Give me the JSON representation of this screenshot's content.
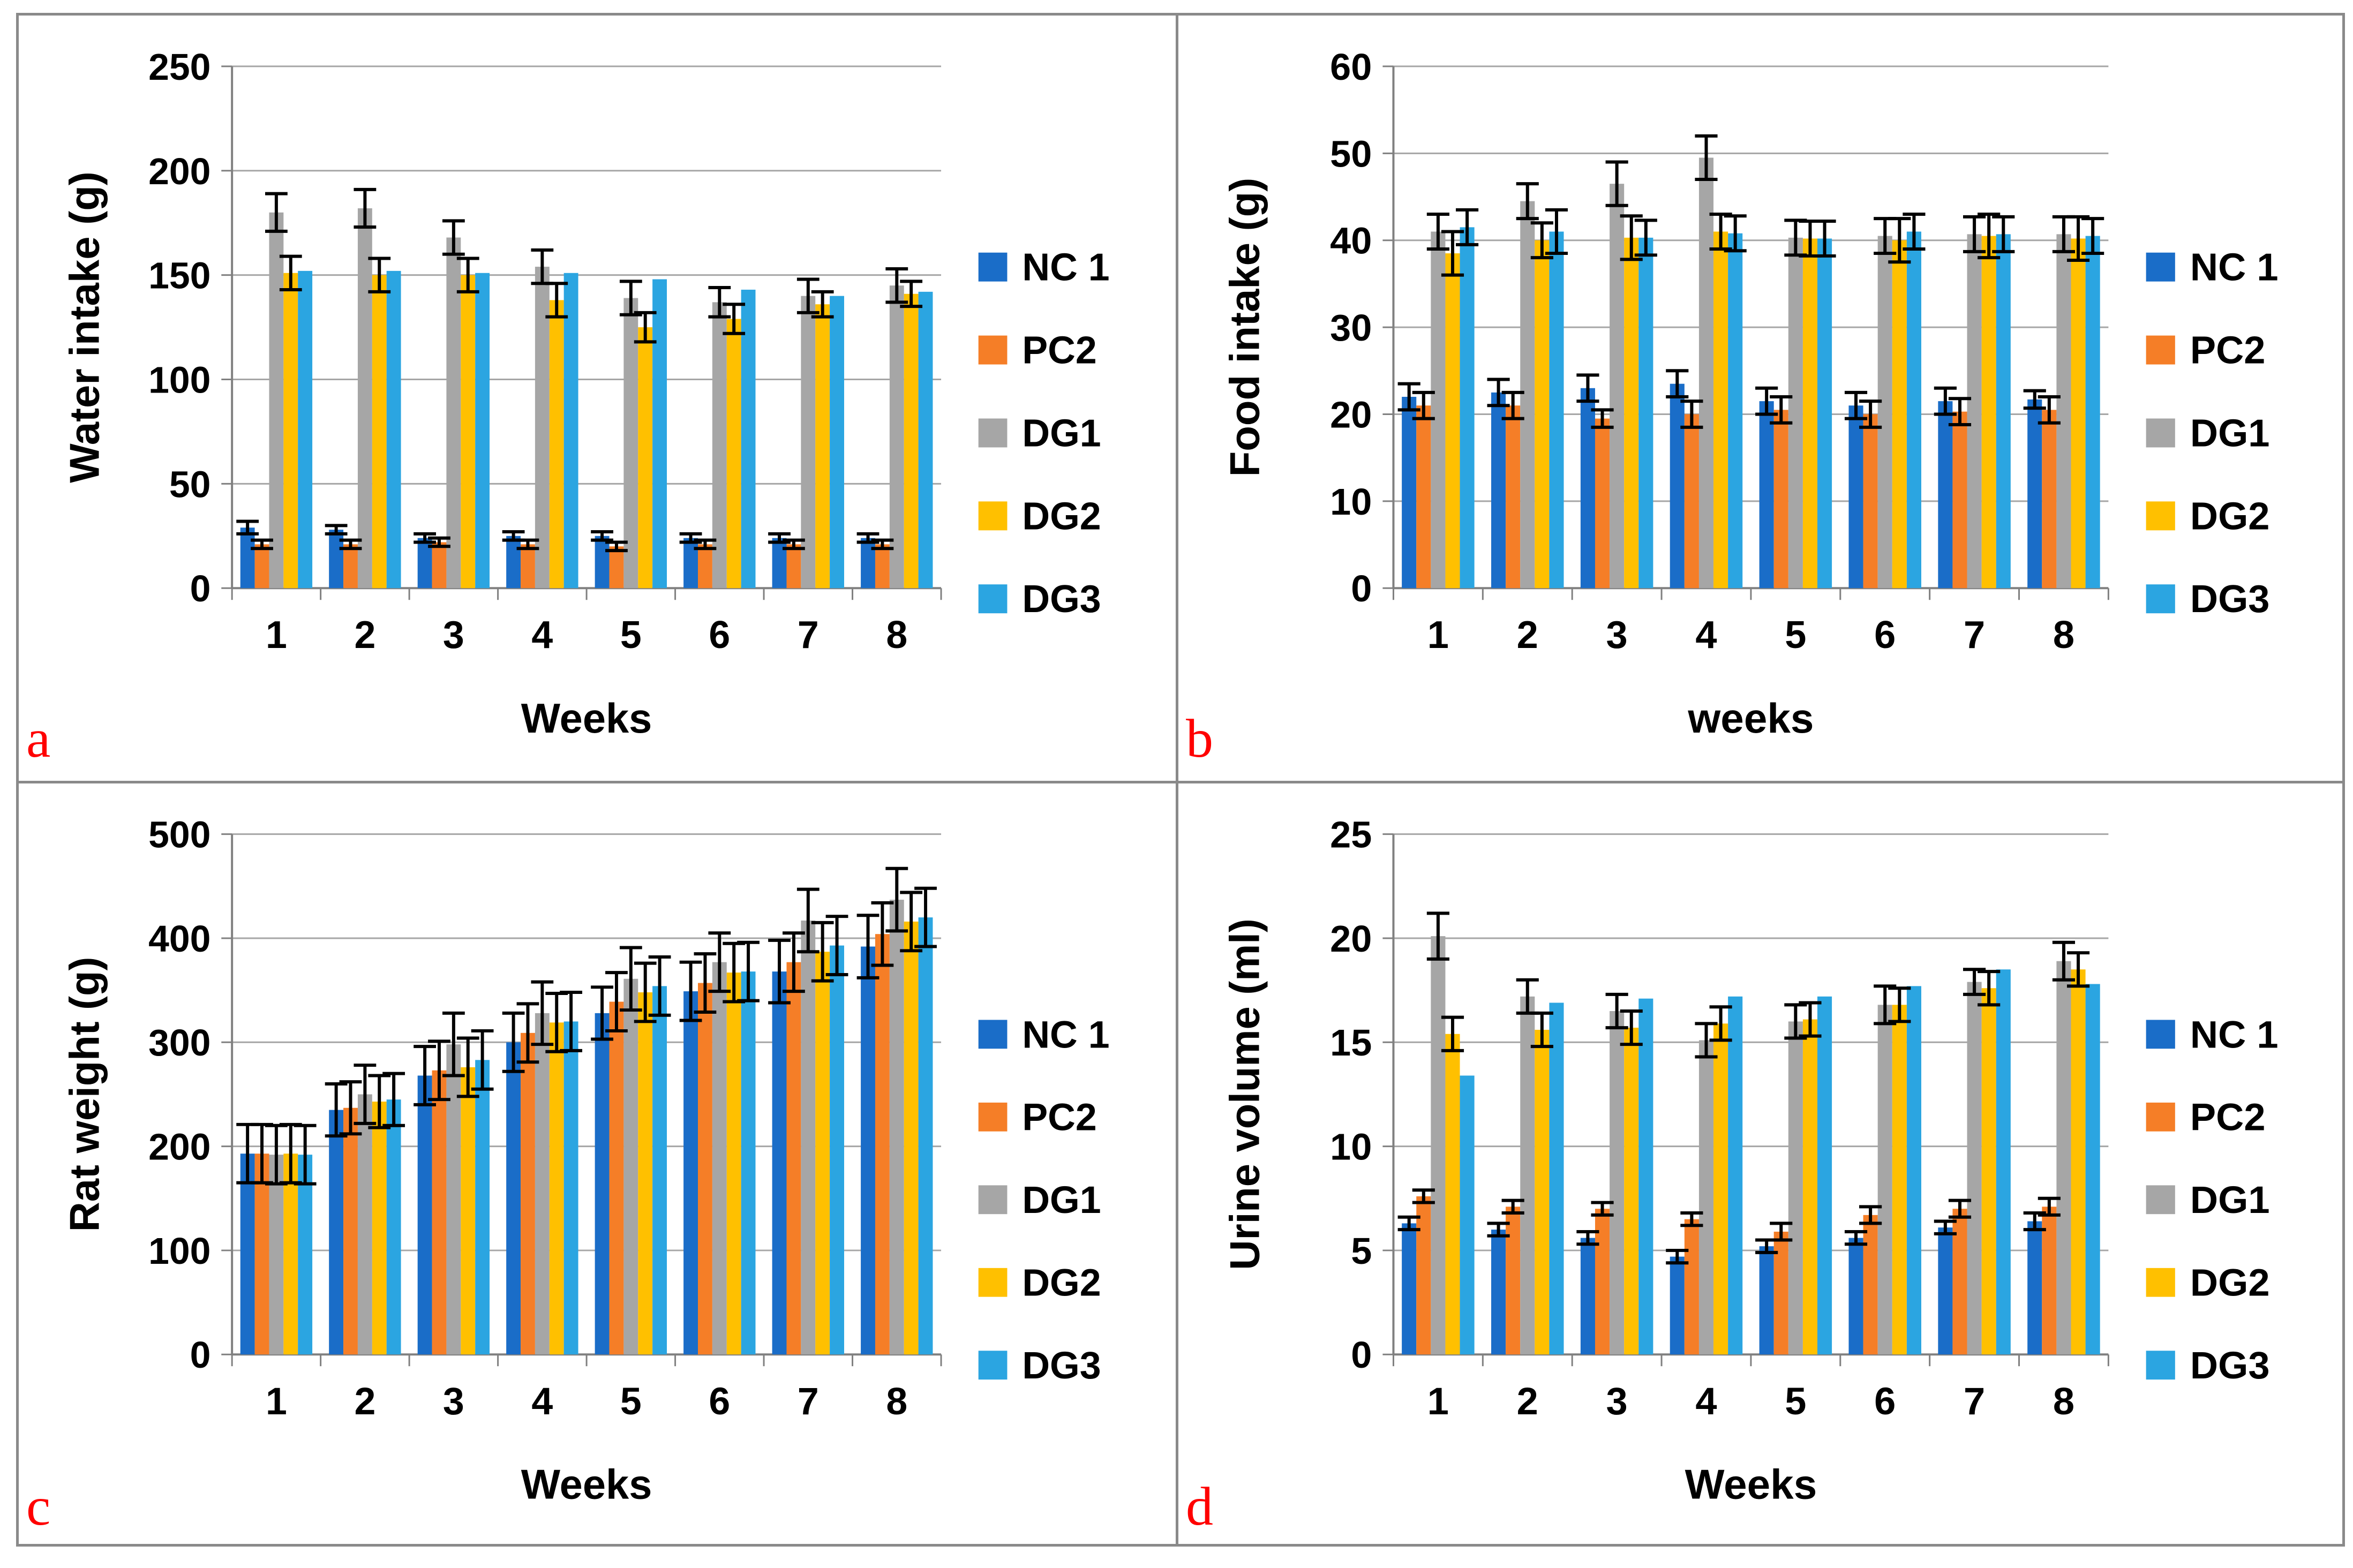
{
  "figure": {
    "background": "#FFFFFF",
    "border_color": "#8A8A8A",
    "gridline_color": "#A6A6A6",
    "axis_color": "#808080",
    "error_bar_color": "#000000",
    "letter_color": "#FF0000",
    "legend_labels": [
      "NC 1",
      "PC2",
      "DG1",
      "DG2",
      "DG3"
    ],
    "series_colors": [
      "#1A6DC8",
      "#F57E27",
      "#A6A6A6",
      "#FFC000",
      "#2BA5E1"
    ]
  },
  "chart_data": [
    {
      "id": "a",
      "panel_letter": "a",
      "type": "bar",
      "title": "",
      "xlabel": "Weeks",
      "ylabel": "Water intake  (g)",
      "categories": [
        "1",
        "2",
        "3",
        "4",
        "5",
        "6",
        "7",
        "8"
      ],
      "ylim": [
        0,
        250
      ],
      "ytick_step": 50,
      "yticks": [
        0,
        50,
        100,
        150,
        200,
        250
      ],
      "grid": true,
      "legend_position": "right",
      "series": [
        {
          "name": "NC 1",
          "color": "#1A6DC8",
          "values": [
            29,
            28,
            24,
            25,
            25,
            24,
            24,
            24
          ],
          "errors": [
            3,
            2,
            2,
            2,
            2,
            2,
            2,
            2
          ]
        },
        {
          "name": "PC2",
          "color": "#F57E27",
          "values": [
            21,
            21,
            22,
            21,
            20,
            21,
            21,
            21
          ],
          "errors": [
            2,
            2,
            2,
            2,
            2,
            2,
            2,
            2
          ]
        },
        {
          "name": "DG1",
          "color": "#A6A6A6",
          "values": [
            180,
            182,
            168,
            154,
            139,
            137,
            140,
            145
          ],
          "errors": [
            9,
            9,
            8,
            8,
            8,
            7,
            8,
            8
          ]
        },
        {
          "name": "DG2",
          "color": "#FFC000",
          "values": [
            151,
            150,
            150,
            138,
            125,
            129,
            136,
            141
          ],
          "errors": [
            8,
            8,
            8,
            8,
            7,
            7,
            6,
            6
          ]
        },
        {
          "name": "DG3",
          "color": "#2BA5E1",
          "values": [
            152,
            152,
            151,
            151,
            148,
            143,
            140,
            142
          ],
          "errors": [
            0,
            0,
            0,
            0,
            0,
            0,
            0,
            0
          ]
        }
      ]
    },
    {
      "id": "b",
      "panel_letter": "b",
      "type": "bar",
      "title": "",
      "xlabel": "weeks",
      "ylabel": "Food intake (g)",
      "categories": [
        "1",
        "2",
        "3",
        "4",
        "5",
        "6",
        "7",
        "8"
      ],
      "ylim": [
        0,
        60
      ],
      "ytick_step": 10,
      "yticks": [
        0,
        10,
        20,
        30,
        40,
        50,
        60
      ],
      "grid": true,
      "legend_position": "right",
      "series": [
        {
          "name": "NC 1",
          "color": "#1A6DC8",
          "values": [
            22,
            22.5,
            23,
            23.5,
            21.5,
            21,
            21.5,
            21.7
          ],
          "errors": [
            1.5,
            1.5,
            1.5,
            1.5,
            1.5,
            1.5,
            1.5,
            1
          ]
        },
        {
          "name": "PC2",
          "color": "#F57E27",
          "values": [
            21,
            21,
            19.5,
            20,
            20.5,
            20,
            20.3,
            20.5
          ],
          "errors": [
            1.5,
            1.5,
            1,
            1.5,
            1.5,
            1.5,
            1.5,
            1.5
          ]
        },
        {
          "name": "DG1",
          "color": "#A6A6A6",
          "values": [
            41,
            44.5,
            46.5,
            49.5,
            40.3,
            40.5,
            40.7,
            40.7
          ],
          "errors": [
            2,
            2,
            2.5,
            2.5,
            2,
            2,
            2,
            2
          ]
        },
        {
          "name": "DG2",
          "color": "#FFC000",
          "values": [
            38.5,
            40,
            40.3,
            41,
            40.2,
            40,
            40.5,
            40.2
          ],
          "errors": [
            2.5,
            2,
            2.5,
            2,
            2,
            2.5,
            2.5,
            2.5
          ]
        },
        {
          "name": "DG3",
          "color": "#2BA5E1",
          "values": [
            41.5,
            41,
            40.3,
            40.8,
            40.2,
            41,
            40.7,
            40.5
          ],
          "errors": [
            2,
            2.5,
            2,
            2,
            2,
            2,
            2,
            2
          ]
        }
      ]
    },
    {
      "id": "c",
      "panel_letter": "c",
      "type": "bar",
      "title": "",
      "xlabel": "Weeks",
      "ylabel": "Rat weight (g)",
      "categories": [
        "1",
        "2",
        "3",
        "4",
        "5",
        "6",
        "7",
        "8"
      ],
      "ylim": [
        0,
        500
      ],
      "ytick_step": 100,
      "yticks": [
        0,
        100,
        200,
        300,
        400,
        500
      ],
      "grid": true,
      "legend_position": "right",
      "series": [
        {
          "name": "NC 1",
          "color": "#1A6DC8",
          "values": [
            193,
            235,
            268,
            300,
            328,
            349,
            368,
            392
          ],
          "errors": [
            28,
            25,
            28,
            28,
            25,
            28,
            30,
            30
          ]
        },
        {
          "name": "PC2",
          "color": "#F57E27",
          "values": [
            193,
            237,
            273,
            309,
            339,
            357,
            377,
            404
          ],
          "errors": [
            28,
            25,
            28,
            28,
            28,
            28,
            28,
            30
          ]
        },
        {
          "name": "DG1",
          "color": "#A6A6A6",
          "values": [
            192,
            250,
            298,
            328,
            361,
            377,
            417,
            437
          ],
          "errors": [
            28,
            28,
            30,
            30,
            30,
            28,
            30,
            30
          ]
        },
        {
          "name": "DG2",
          "color": "#FFC000",
          "values": [
            193,
            243,
            276,
            319,
            348,
            367,
            387,
            416
          ],
          "errors": [
            28,
            25,
            28,
            28,
            28,
            28,
            28,
            28
          ]
        },
        {
          "name": "DG3",
          "color": "#2BA5E1",
          "values": [
            192,
            245,
            283,
            320,
            354,
            368,
            393,
            420
          ],
          "errors": [
            28,
            25,
            28,
            28,
            28,
            28,
            28,
            28
          ]
        }
      ]
    },
    {
      "id": "d",
      "panel_letter": "d",
      "type": "bar",
      "title": "",
      "xlabel": "Weeks",
      "ylabel": "Urine volume  (ml)",
      "categories": [
        "1",
        "2",
        "3",
        "4",
        "5",
        "6",
        "7",
        "8"
      ],
      "ylim": [
        0,
        25
      ],
      "ytick_step": 5,
      "yticks": [
        0,
        5,
        10,
        15,
        20,
        25
      ],
      "grid": true,
      "legend_position": "right",
      "series": [
        {
          "name": "NC 1",
          "color": "#1A6DC8",
          "values": [
            6.3,
            6.0,
            5.6,
            4.7,
            5.2,
            5.6,
            6.1,
            6.4
          ],
          "errors": [
            0.3,
            0.3,
            0.3,
            0.3,
            0.3,
            0.3,
            0.3,
            0.4
          ]
        },
        {
          "name": "PC2",
          "color": "#F57E27",
          "values": [
            7.6,
            7.1,
            7.0,
            6.5,
            5.9,
            6.7,
            7.0,
            7.1
          ],
          "errors": [
            0.3,
            0.3,
            0.3,
            0.3,
            0.4,
            0.4,
            0.4,
            0.4
          ]
        },
        {
          "name": "DG1",
          "color": "#A6A6A6",
          "values": [
            20.1,
            17.2,
            16.5,
            15.1,
            16.0,
            16.8,
            17.9,
            18.9
          ],
          "errors": [
            1.1,
            0.8,
            0.8,
            0.8,
            0.8,
            0.9,
            0.6,
            0.9
          ]
        },
        {
          "name": "DG2",
          "color": "#FFC000",
          "values": [
            15.4,
            15.6,
            15.7,
            15.9,
            16.1,
            16.8,
            17.6,
            18.5
          ],
          "errors": [
            0.8,
            0.8,
            0.8,
            0.8,
            0.8,
            0.8,
            0.8,
            0.8
          ]
        },
        {
          "name": "DG3",
          "color": "#2BA5E1",
          "values": [
            13.4,
            16.9,
            17.1,
            17.2,
            17.2,
            17.7,
            18.5,
            17.8
          ],
          "errors": [
            0,
            0,
            0,
            0,
            0,
            0,
            0,
            0
          ]
        }
      ]
    }
  ]
}
